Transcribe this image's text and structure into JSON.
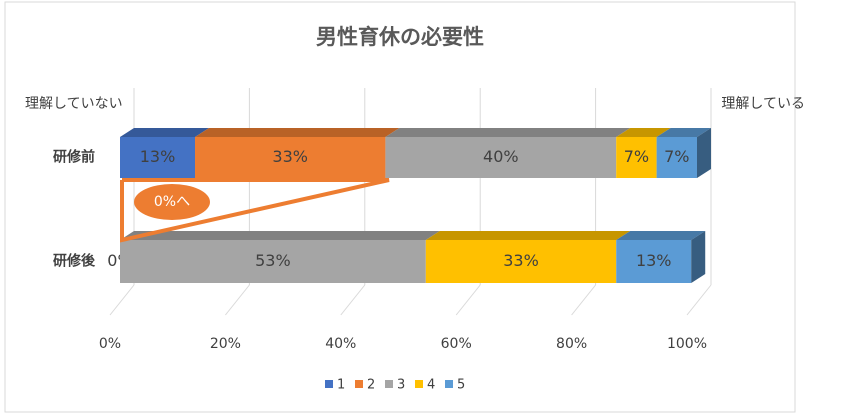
{
  "chart_data": {
    "type": "stacked_bar_horizontal",
    "title": "男性育休の必要性",
    "categories": [
      "研修前",
      "研修後"
    ],
    "series": [
      {
        "name": "1",
        "color": "#4472c4",
        "values": [
          13,
          0
        ],
        "value_labels": [
          "13%",
          null
        ]
      },
      {
        "name": "2",
        "color": "#ed7d31",
        "values": [
          33,
          0
        ],
        "value_labels": [
          "33%",
          "0%"
        ]
      },
      {
        "name": "3",
        "color": "#a5a5a5",
        "values": [
          40,
          53
        ],
        "value_labels": [
          "40%",
          "53%"
        ]
      },
      {
        "name": "4",
        "color": "#ffc000",
        "values": [
          7,
          33
        ],
        "value_labels": [
          "7%",
          "33%"
        ]
      },
      {
        "name": "5",
        "color": "#5b9bd5",
        "values": [
          7,
          13
        ],
        "value_labels": [
          "7%",
          "13%"
        ]
      }
    ],
    "xlim": [
      0,
      100
    ],
    "xticks": [
      {
        "value": 0,
        "label": "0%"
      },
      {
        "value": 20,
        "label": "20%"
      },
      {
        "value": 40,
        "label": "40%"
      },
      {
        "value": 60,
        "label": "60%"
      },
      {
        "value": 80,
        "label": "80%"
      },
      {
        "value": 100,
        "label": "100%"
      }
    ],
    "grid": true,
    "legend": "bottom",
    "annotations": {
      "left": "理解していない",
      "right": "理解している",
      "callout": "0%へ"
    }
  }
}
